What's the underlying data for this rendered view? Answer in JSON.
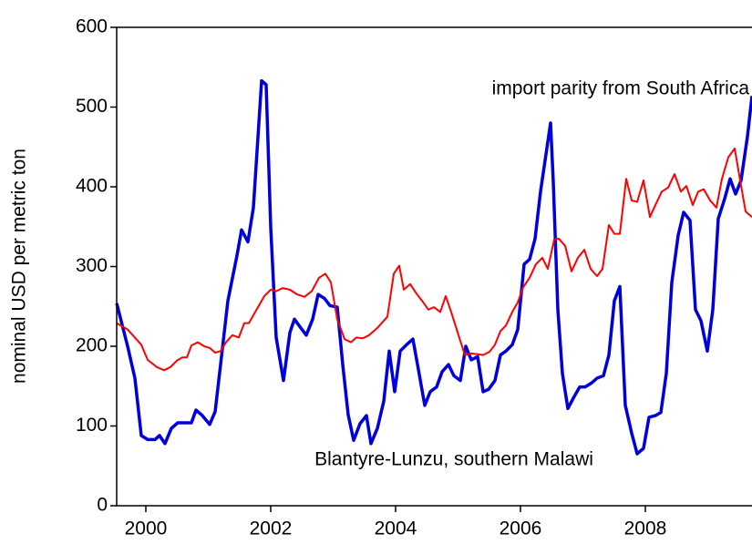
{
  "chart_data": {
    "type": "line",
    "ylabel": "nominal USD per metric ton",
    "xlim": [
      1999.533,
      2009.708
    ],
    "xticks": [
      2000,
      2002,
      2004,
      2006,
      2008
    ],
    "ylim": [
      0,
      600
    ],
    "yticks": [
      0,
      100,
      200,
      300,
      400,
      500,
      600
    ],
    "series": [
      {
        "name": "Blantyre-Lunzu, southern Malawi",
        "color": "#0000dd",
        "x": [
          1999.533,
          1999.708,
          1999.825,
          1999.927,
          2000.029,
          2000.146,
          2000.219,
          2000.307,
          2000.409,
          2000.511,
          2000.73,
          2000.803,
          2000.905,
          2001.022,
          2001.109,
          2001.197,
          2001.314,
          2001.46,
          2001.533,
          2001.635,
          2001.723,
          2001.854,
          2001.927,
          2002.0,
          2002.088,
          2002.204,
          2002.307,
          2002.38,
          2002.482,
          2002.569,
          2002.672,
          2002.759,
          2002.861,
          2002.949,
          2003.066,
          2003.153,
          2003.241,
          2003.328,
          2003.431,
          2003.533,
          2003.606,
          2003.708,
          2003.81,
          2003.898,
          2003.985,
          2004.073,
          2004.175,
          2004.277,
          2004.365,
          2004.467,
          2004.555,
          2004.657,
          2004.745,
          2004.847,
          2004.934,
          2005.036,
          2005.124,
          2005.212,
          2005.314,
          2005.401,
          2005.489,
          2005.591,
          2005.679,
          2005.766,
          2005.869,
          2005.956,
          2006.058,
          2006.146,
          2006.234,
          2006.321,
          2006.482,
          2006.526,
          2006.599,
          2006.672,
          2006.759,
          2006.861,
          2006.949,
          2007.036,
          2007.139,
          2007.226,
          2007.328,
          2007.416,
          2007.504,
          2007.591,
          2007.679,
          2007.781,
          2007.869,
          2007.971,
          2008.058,
          2008.161,
          2008.248,
          2008.336,
          2008.423,
          2008.526,
          2008.613,
          2008.715,
          2008.803,
          2008.891,
          2008.993,
          2009.08,
          2009.168,
          2009.27,
          2009.358,
          2009.445,
          2009.533,
          2009.635,
          2009.708
        ],
        "values": [
          254,
          200,
          160,
          88,
          83,
          83,
          88,
          78,
          97,
          104,
          104,
          120,
          113,
          102,
          118,
          177,
          257,
          314,
          346,
          331,
          374,
          533,
          528,
          349,
          211,
          157,
          217,
          234,
          223,
          214,
          234,
          265,
          260,
          251,
          249,
          177,
          114,
          82,
          103,
          113,
          78,
          97,
          131,
          194,
          143,
          194,
          202,
          209,
          171,
          126,
          143,
          149,
          168,
          177,
          163,
          157,
          200,
          183,
          187,
          143,
          146,
          157,
          189,
          194,
          202,
          221,
          303,
          309,
          335,
          394,
          480,
          406,
          246,
          166,
          122,
          137,
          149,
          149,
          154,
          160,
          163,
          189,
          257,
          275,
          126,
          91,
          65,
          72,
          111,
          113,
          117,
          166,
          280,
          339,
          368,
          358,
          246,
          232,
          194,
          246,
          360,
          385,
          410,
          391,
          408,
          463,
          514
        ]
      },
      {
        "name": "import parity from South Africa",
        "color": "#ff0000",
        "x": [
          1999.533,
          1999.708,
          1999.927,
          2000.029,
          2000.175,
          2000.292,
          2000.394,
          2000.496,
          2000.584,
          2000.657,
          2000.73,
          2000.832,
          2000.934,
          2001.022,
          2001.109,
          2001.197,
          2001.285,
          2001.387,
          2001.489,
          2001.577,
          2001.65,
          2001.752,
          2001.898,
          2002.0,
          2002.088,
          2002.19,
          2002.307,
          2002.423,
          2002.54,
          2002.657,
          2002.774,
          2002.876,
          2002.964,
          2003.066,
          2003.182,
          2003.285,
          2003.372,
          2003.474,
          2003.577,
          2003.708,
          2003.869,
          2003.971,
          2004.058,
          2004.131,
          2004.234,
          2004.336,
          2004.423,
          2004.526,
          2004.613,
          2004.715,
          2004.803,
          2004.891,
          2005.007,
          2005.109,
          2005.212,
          2005.314,
          2005.401,
          2005.504,
          2005.591,
          2005.679,
          2005.766,
          2005.869,
          2005.956,
          2006.044,
          2006.146,
          2006.248,
          2006.35,
          2006.438,
          2006.54,
          2006.613,
          2006.715,
          2006.818,
          2006.92,
          2007.022,
          2007.124,
          2007.226,
          2007.314,
          2007.416,
          2007.504,
          2007.591,
          2007.693,
          2007.781,
          2007.869,
          2007.971,
          2008.073,
          2008.161,
          2008.263,
          2008.365,
          2008.467,
          2008.569,
          2008.657,
          2008.759,
          2008.847,
          2008.934,
          2009.036,
          2009.139,
          2009.226,
          2009.328,
          2009.431,
          2009.518,
          2009.606,
          2009.708
        ],
        "values": [
          229,
          221,
          202,
          183,
          174,
          170,
          174,
          182,
          186,
          186,
          201,
          205,
          200,
          198,
          192,
          194,
          205,
          214,
          211,
          229,
          229,
          243,
          263,
          271,
          269,
          273,
          271,
          265,
          262,
          269,
          286,
          291,
          280,
          234,
          209,
          205,
          211,
          210,
          214,
          223,
          237,
          291,
          301,
          271,
          278,
          266,
          257,
          246,
          249,
          243,
          263,
          243,
          214,
          189,
          191,
          190,
          189,
          193,
          202,
          219,
          226,
          243,
          255,
          274,
          286,
          303,
          311,
          297,
          334,
          335,
          326,
          294,
          311,
          321,
          297,
          288,
          297,
          352,
          341,
          341,
          410,
          383,
          381,
          408,
          362,
          377,
          394,
          399,
          416,
          394,
          401,
          377,
          394,
          397,
          383,
          374,
          410,
          437,
          448,
          408,
          369,
          362
        ]
      }
    ]
  }
}
